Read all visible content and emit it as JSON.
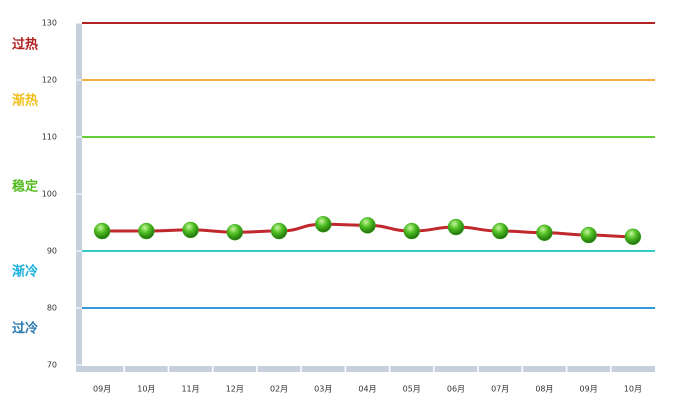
{
  "chart_data": {
    "type": "line",
    "categories": [
      "09月",
      "10月",
      "11月",
      "12月",
      "02月",
      "03月",
      "04月",
      "05月",
      "06月",
      "07月",
      "08月",
      "09月",
      "10月"
    ],
    "values": [
      93.5,
      93.5,
      93.7,
      93.3,
      93.5,
      94.7,
      94.5,
      93.5,
      94.2,
      93.5,
      93.2,
      92.8,
      92.5
    ],
    "color": "#c0282d",
    "marker_color": "#3fae1f",
    "ylim": [
      70,
      130
    ],
    "yticks": [
      70,
      80,
      90,
      100,
      110,
      120,
      130
    ],
    "reference_lines": [
      {
        "value": 130,
        "color": "#b22222"
      },
      {
        "value": 120,
        "color": "#f5b041"
      },
      {
        "value": 110,
        "color": "#66cc33"
      },
      {
        "value": 90,
        "color": "#33cccc"
      },
      {
        "value": 80,
        "color": "#3399dd"
      }
    ],
    "zone_labels": [
      {
        "text": "过热",
        "color": "#b22222"
      },
      {
        "text": "渐热",
        "color": "#f0c020"
      },
      {
        "text": "稳定",
        "color": "#55bb22"
      },
      {
        "text": "渐冷",
        "color": "#1ab0e0"
      },
      {
        "text": "过冷",
        "color": "#2a7ab0"
      }
    ]
  }
}
